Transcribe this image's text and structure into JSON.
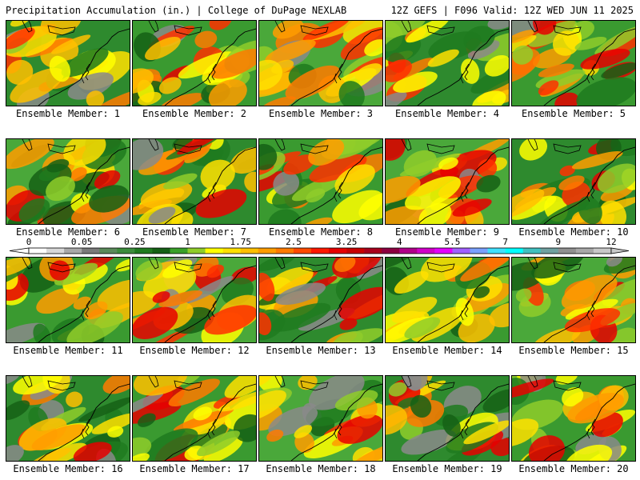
{
  "header": {
    "left_title": "Precipitation Accumulation (in.) | College of DuPage NEXLAB",
    "right_title": "12Z GEFS | F096 Valid: 12Z WED JUN 11 2025"
  },
  "colorbar": {
    "labels": [
      "0",
      "0.05",
      "0.25",
      "1",
      "1.75",
      "2.5",
      "3.25",
      "4",
      "5.5",
      "7",
      "9",
      "12"
    ],
    "colors": [
      "#ffffff",
      "#d8d8d8",
      "#a8a8a8",
      "#7a7a7a",
      "#5a8a5a",
      "#3c8c3c",
      "#1f7a1f",
      "#156015",
      "#3aa02a",
      "#8fcd2a",
      "#ffff00",
      "#ffe000",
      "#ffbf00",
      "#ff9c00",
      "#ff7a00",
      "#ff4a00",
      "#ff1800",
      "#e60000",
      "#c80000",
      "#a8001c",
      "#8c0040",
      "#b0008a",
      "#d000c8",
      "#e400ff",
      "#a060ff",
      "#7aa0ff",
      "#40e0ff",
      "#00ffff",
      "#40c0c0",
      "#70a0a0",
      "#909090",
      "#a8a8a8",
      "#c8c8c8"
    ]
  },
  "panels": [
    {
      "label": "Ensemble Member: 1"
    },
    {
      "label": "Ensemble Member: 2"
    },
    {
      "label": "Ensemble Member: 3"
    },
    {
      "label": "Ensemble Member: 4"
    },
    {
      "label": "Ensemble Member: 5"
    },
    {
      "label": "Ensemble Member: 6"
    },
    {
      "label": "Ensemble Member: 7"
    },
    {
      "label": "Ensemble Member: 8"
    },
    {
      "label": "Ensemble Member: 9"
    },
    {
      "label": "Ensemble Member: 10"
    },
    {
      "label": "Ensemble Member: 11"
    },
    {
      "label": "Ensemble Member: 12"
    },
    {
      "label": "Ensemble Member: 13"
    },
    {
      "label": "Ensemble Member: 14"
    },
    {
      "label": "Ensemble Member: 15"
    },
    {
      "label": "Ensemble Member: 16"
    },
    {
      "label": "Ensemble Member: 17"
    },
    {
      "label": "Ensemble Member: 18"
    },
    {
      "label": "Ensemble Member: 19"
    },
    {
      "label": "Ensemble Member: 20"
    }
  ]
}
